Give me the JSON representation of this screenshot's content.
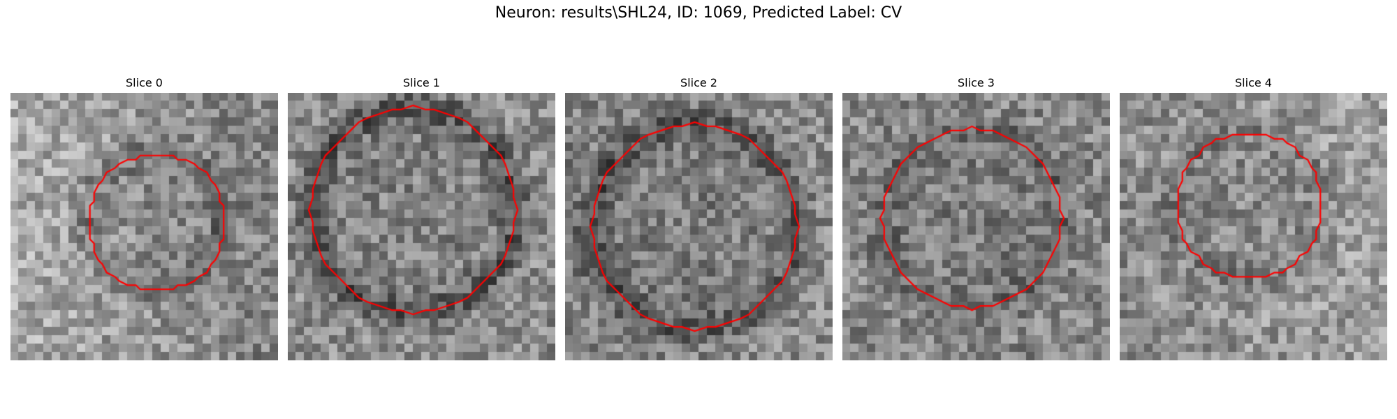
{
  "figure": {
    "title": "Neuron: results\\SHL24, ID: 1069, Predicted Label: CV",
    "contour_color": "#ff0000"
  },
  "slices": [
    {
      "title": "Slice 0"
    },
    {
      "title": "Slice 1"
    },
    {
      "title": "Slice 2"
    },
    {
      "title": "Slice 3"
    },
    {
      "title": "Slice 4"
    }
  ]
}
